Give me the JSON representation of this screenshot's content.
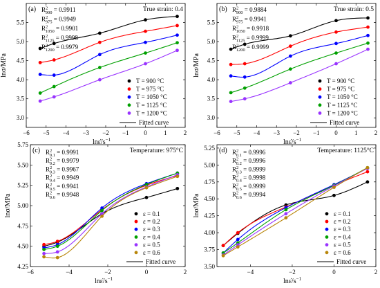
{
  "figure": {
    "panels": 4
  },
  "colors": {
    "black": "#000000",
    "red": "#ff0000",
    "blue": "#0000ff",
    "green": "#00a000",
    "purple": "#9933ff",
    "orange": "#b8860b"
  },
  "chart_data": [
    {
      "type": "scatter",
      "panel_label": "(a)",
      "note": "True strain: 0.4",
      "xlabel_main": "lnε̇/s",
      "xlabel_exp": "−1",
      "ylabel": "lnσ/MPa",
      "xlim": [
        -6,
        2
      ],
      "ylim": [
        2.75,
        6.0
      ],
      "xticks": [
        -6,
        -5,
        -4,
        -3,
        -2,
        -1,
        0,
        1,
        2
      ],
      "xtick_labels": [
        "−6",
        "−5",
        "−4",
        "−3",
        "−2",
        "−1",
        "0",
        "1",
        "2"
      ],
      "yticks": [
        3.0,
        3.5,
        4.0,
        4.5,
        5.0,
        5.5
      ],
      "ytick_labels": [
        "3.0",
        "3.5",
        "4.0",
        "4.5",
        "5.0",
        "5.5"
      ],
      "grid": false,
      "r2_position": "top-left",
      "legend_position": "bottom-right",
      "r2": [
        {
          "label": "R",
          "sub": "900",
          "value": " = 0.9911"
        },
        {
          "label": "R",
          "sub": "975",
          "value": " = 0.9949"
        },
        {
          "label": "R",
          "sub": "1050",
          "value": " = 0.9901"
        },
        {
          "label": "R",
          "sub": "1125",
          "value": " = 0.9998"
        },
        {
          "label": "R",
          "sub": "1200",
          "value": " = 0.9979"
        }
      ],
      "x": [
        -5.3,
        -4.6,
        -2.3,
        0,
        1.6
      ],
      "series": [
        {
          "name": "T = 900 °C",
          "color": "black",
          "values": [
            4.82,
            4.95,
            5.22,
            5.57,
            5.66
          ]
        },
        {
          "name": "T = 975 °C",
          "color": "red",
          "values": [
            4.45,
            4.52,
            4.98,
            5.27,
            5.42
          ]
        },
        {
          "name": "T = 1050 °C",
          "color": "blue",
          "values": [
            4.14,
            4.12,
            4.66,
            4.98,
            5.17
          ]
        },
        {
          "name": "T = 1125 °C",
          "color": "green",
          "values": [
            3.65,
            3.82,
            4.32,
            4.7,
            4.97
          ]
        },
        {
          "name": "T = 1200 °C",
          "color": "purple",
          "values": [
            3.44,
            3.55,
            4.0,
            4.42,
            4.77
          ]
        }
      ],
      "fitted_label": "Fitted curve"
    },
    {
      "type": "scatter",
      "panel_label": "(b)",
      "note": "True strain: 0.5",
      "xlabel_main": "lnε̇/s",
      "xlabel_exp": "−1",
      "ylabel": "lnσ/MPa",
      "xlim": [
        -6,
        2
      ],
      "ylim": [
        2.75,
        6.0
      ],
      "xticks": [
        -6,
        -5,
        -4,
        -3,
        -2,
        -1,
        0,
        1,
        2
      ],
      "xtick_labels": [
        "−6",
        "−5",
        "−4",
        "−3",
        "−2",
        "−1",
        "0",
        "1",
        "2"
      ],
      "yticks": [
        3.0,
        3.5,
        4.0,
        4.5,
        5.0,
        5.5
      ],
      "ytick_labels": [
        "3.0",
        "3.5",
        "4.0",
        "4.5",
        "5.0",
        "5.5"
      ],
      "grid": false,
      "r2_position": "top-left",
      "legend_position": "bottom-right",
      "r2": [
        {
          "label": "R",
          "sub": "900",
          "value": " = 0.9884"
        },
        {
          "label": "R",
          "sub": "975",
          "value": " = 0.9941"
        },
        {
          "label": "R",
          "sub": "1050",
          "value": " = 0.9918"
        },
        {
          "label": "R",
          "sub": "1125",
          "value": " = 0.9999"
        },
        {
          "label": "R",
          "sub": "1200",
          "value": " = 0.9999"
        }
      ],
      "x": [
        -5.3,
        -4.6,
        -2.3,
        0,
        1.6
      ],
      "series": [
        {
          "name": "T = 900 °C",
          "color": "black",
          "values": [
            4.8,
            4.93,
            5.15,
            5.55,
            5.62
          ]
        },
        {
          "name": "T = 975 °C",
          "color": "red",
          "values": [
            4.4,
            4.42,
            4.88,
            5.25,
            5.38
          ]
        },
        {
          "name": "T = 1050 °C",
          "color": "blue",
          "values": [
            4.1,
            4.07,
            4.62,
            4.95,
            5.16
          ]
        },
        {
          "name": "T = 1125 °C",
          "color": "green",
          "values": [
            3.66,
            3.78,
            4.28,
            4.7,
            4.96
          ]
        },
        {
          "name": "T = 1200 °C",
          "color": "purple",
          "values": [
            3.43,
            3.5,
            3.92,
            4.42,
            4.8
          ]
        }
      ],
      "fitted_label": "Fitted curve"
    },
    {
      "type": "scatter",
      "panel_label": "(c)",
      "note": "Temperature: 975°C",
      "xlabel_main": "lnε̇/s",
      "xlabel_exp": "−1",
      "ylabel": "lnσ/MPa",
      "xlim": [
        -6,
        2
      ],
      "ylim": [
        4.25,
        5.75
      ],
      "xticks": [
        -6,
        -4,
        -2,
        0,
        2
      ],
      "xtick_labels": [
        "−6",
        "−4",
        "−2",
        "0",
        "2"
      ],
      "yticks": [
        4.25,
        4.5,
        4.75,
        5.0,
        5.25,
        5.5,
        5.75
      ],
      "ytick_labels": [
        "4.25",
        "4.50",
        "4.75",
        "5.00",
        "5.25",
        "5.50",
        "5.75"
      ],
      "grid": false,
      "r2_position": "top-left",
      "legend_position": "bottom-right",
      "r2": [
        {
          "label": "R",
          "sub": "0.1",
          "value": " = 0.9991"
        },
        {
          "label": "R",
          "sub": "0.2",
          "value": " = 0.9979"
        },
        {
          "label": "R",
          "sub": "0.3",
          "value": " = 0.9967"
        },
        {
          "label": "R",
          "sub": "0.4",
          "value": " = 0.9949"
        },
        {
          "label": "R",
          "sub": "0.5",
          "value": " = 0.9941"
        },
        {
          "label": "R",
          "sub": "0.6",
          "value": " = 0.9948"
        }
      ],
      "x": [
        -5.3,
        -4.6,
        -2.3,
        0,
        1.6
      ],
      "series": [
        {
          "name": "ε = 0.1",
          "color": "black",
          "values": [
            4.5,
            4.55,
            4.9,
            5.1,
            5.21
          ]
        },
        {
          "name": "ε = 0.2",
          "color": "red",
          "values": [
            4.52,
            4.56,
            4.95,
            5.25,
            5.37
          ]
        },
        {
          "name": "ε = 0.3",
          "color": "blue",
          "values": [
            4.48,
            4.52,
            4.97,
            5.27,
            5.4
          ]
        },
        {
          "name": "ε = 0.4",
          "color": "green",
          "values": [
            4.46,
            4.5,
            4.94,
            5.26,
            5.4
          ]
        },
        {
          "name": "ε = 0.5",
          "color": "purple",
          "values": [
            4.41,
            4.43,
            4.9,
            5.23,
            5.38
          ]
        },
        {
          "name": "ε = 0.6",
          "color": "orange",
          "values": [
            4.37,
            4.36,
            4.87,
            5.22,
            5.36
          ]
        }
      ],
      "fitted_label": "Fitted curve"
    },
    {
      "type": "scatter",
      "panel_label": "(d)",
      "note": "Temperature: 1125°C",
      "xlabel_main": "lnε̇/s",
      "xlabel_exp": "−1",
      "ylabel": "lnσ/MPa",
      "xlim": [
        -5.6,
        2
      ],
      "ylim": [
        3.5,
        5.3
      ],
      "xticks": [
        -4,
        -2,
        0,
        2
      ],
      "xtick_labels": [
        "−4",
        "−2",
        "0",
        "2"
      ],
      "yticks": [
        3.5,
        3.75,
        4.0,
        4.25,
        4.5,
        4.75,
        5.0,
        5.25
      ],
      "ytick_labels": [
        "3.50",
        "3.75",
        "4.00",
        "4.25",
        "4.50",
        "4.75",
        "5.00",
        "5.25"
      ],
      "grid": false,
      "r2_position": "top-left",
      "legend_position": "bottom-right",
      "r2": [
        {
          "label": "R",
          "sub": "0.1",
          "value": " = 0.9996"
        },
        {
          "label": "R",
          "sub": "0.2",
          "value": " = 0.9996"
        },
        {
          "label": "R",
          "sub": "0.3",
          "value": " = 0.9999"
        },
        {
          "label": "R",
          "sub": "0.4",
          "value": " = 0.9998"
        },
        {
          "label": "R",
          "sub": "0.5",
          "value": " = 0.9999"
        },
        {
          "label": "R",
          "sub": "0.6",
          "value": " = 0.9994"
        }
      ],
      "x": [
        -5.3,
        -4.6,
        -2.3,
        0,
        1.6
      ],
      "series": [
        {
          "name": "ε = 0.1",
          "color": "black",
          "values": [
            3.81,
            3.99,
            4.41,
            4.55,
            4.75
          ]
        },
        {
          "name": "ε = 0.2",
          "color": "red",
          "values": [
            3.81,
            4.0,
            4.38,
            4.7,
            4.9
          ]
        },
        {
          "name": "ε = 0.3",
          "color": "blue",
          "values": [
            3.7,
            3.9,
            4.37,
            4.71,
            4.95
          ]
        },
        {
          "name": "ε = 0.4",
          "color": "green",
          "values": [
            3.7,
            3.85,
            4.34,
            4.7,
            4.96
          ]
        },
        {
          "name": "ε = 0.5",
          "color": "purple",
          "values": [
            3.67,
            3.82,
            4.28,
            4.69,
            4.95
          ]
        },
        {
          "name": "ε = 0.6",
          "color": "orange",
          "values": [
            3.66,
            3.79,
            4.22,
            4.67,
            4.96
          ]
        }
      ],
      "fitted_label": "Fitted curve"
    }
  ]
}
